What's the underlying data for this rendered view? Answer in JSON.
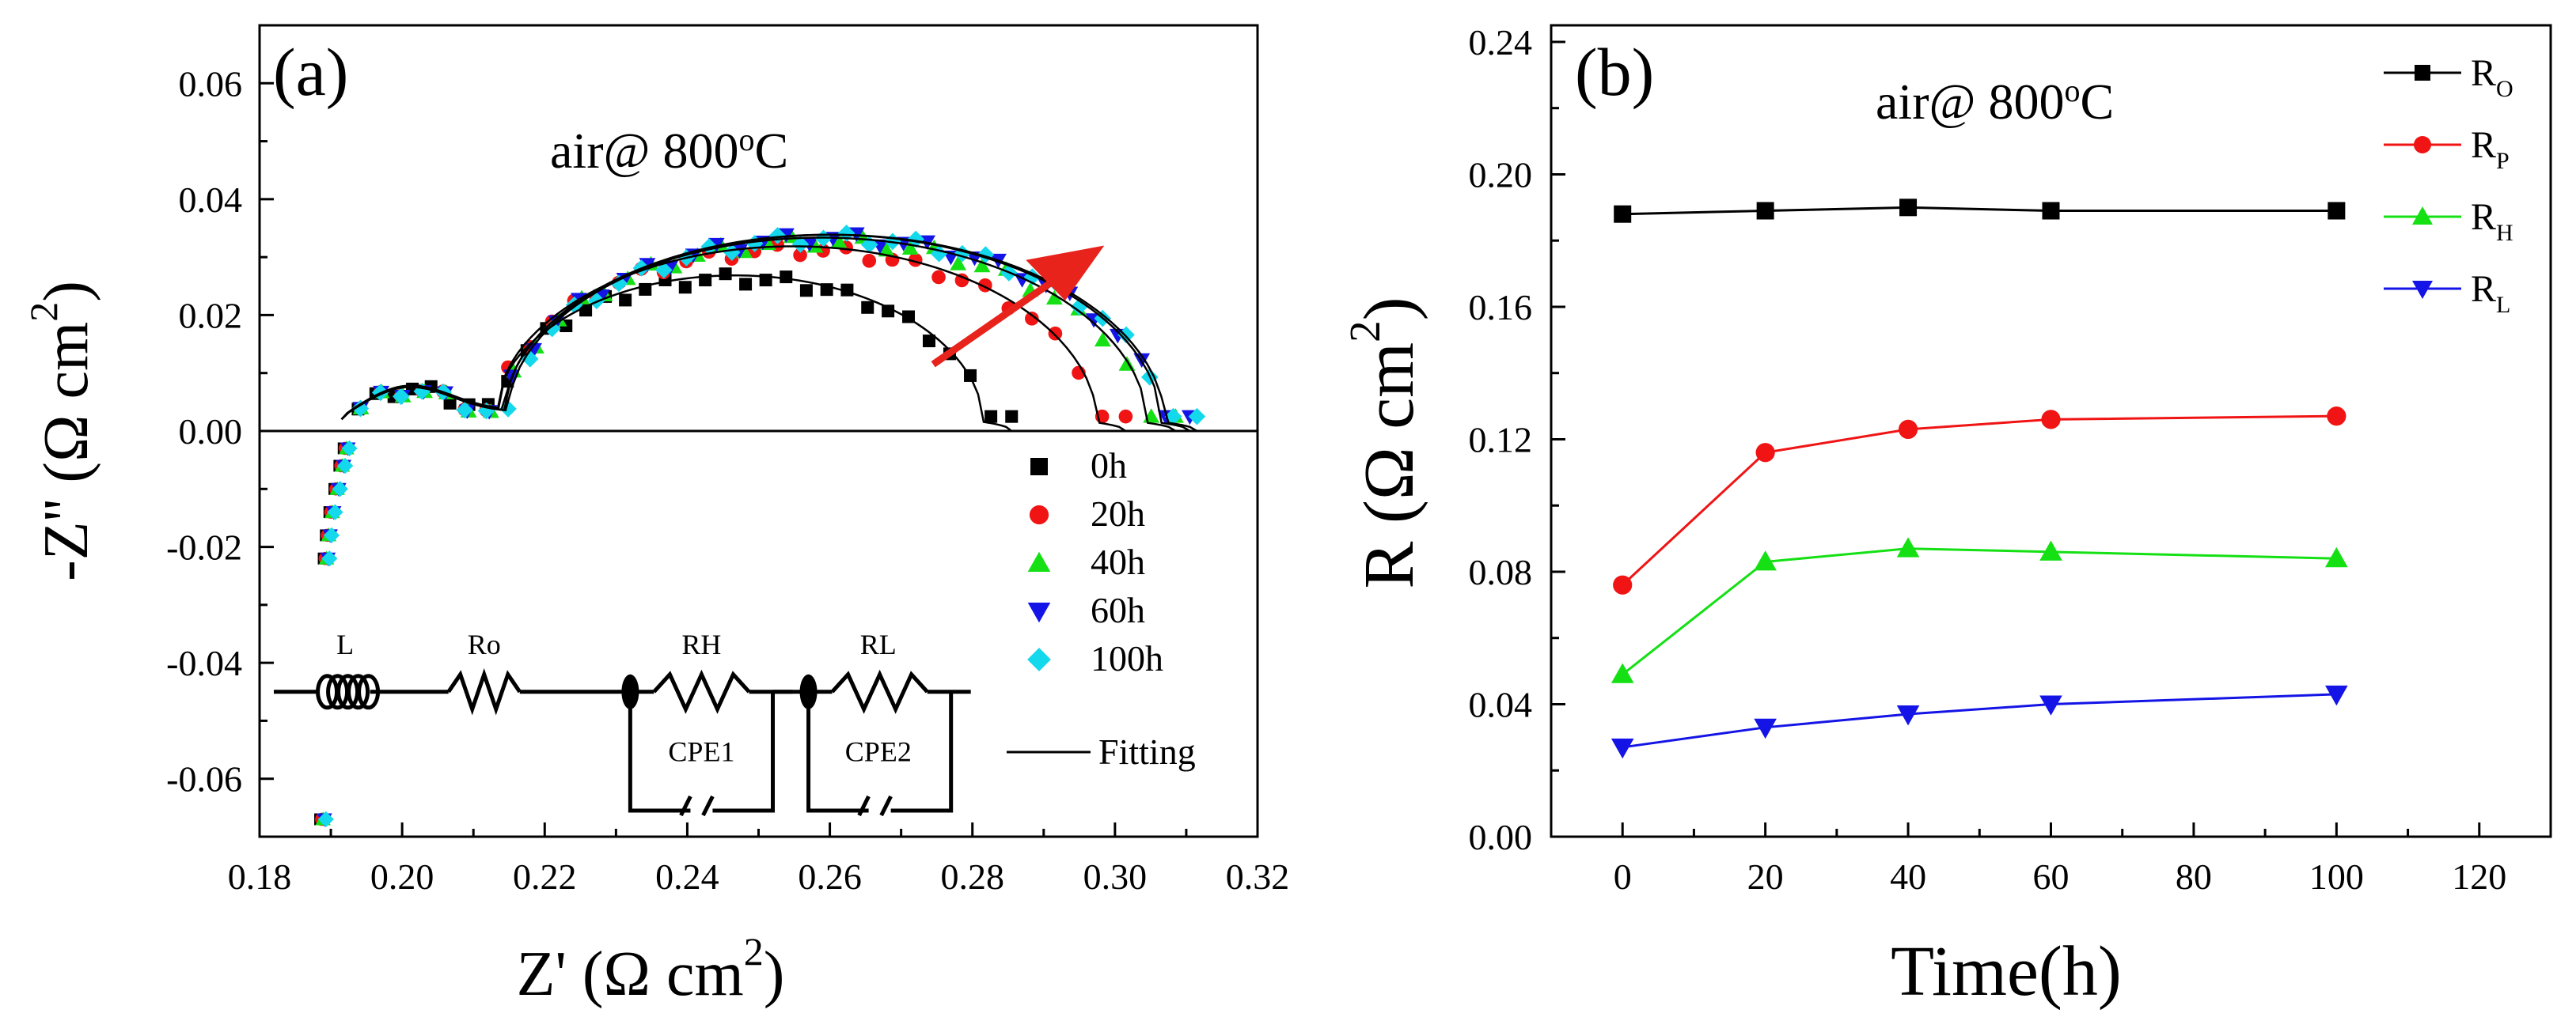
{
  "chart_data": [
    {
      "panel": "a",
      "type": "scatter",
      "panel_label": "(a)",
      "annotation": {
        "prefix": "air@ 800",
        "sup": "o",
        "suffix": "C"
      },
      "xlabel": {
        "main": "Z' (Ω cm",
        "sup": "2",
        "end": ")"
      },
      "ylabel": {
        "main": "-Z'' (Ω cm",
        "sup": "2",
        "end": ")"
      },
      "xlim": [
        0.18,
        0.32
      ],
      "ylim": [
        -0.07,
        0.07
      ],
      "xticks": [
        0.18,
        0.2,
        0.22,
        0.24,
        0.26,
        0.28,
        0.3,
        0.32
      ],
      "xtick_labels": [
        "0.18",
        "0.20",
        "0.22",
        "0.24",
        "0.26",
        "0.28",
        "0.30",
        "0.32"
      ],
      "yticks": [
        -0.06,
        -0.04,
        -0.02,
        0.0,
        0.02,
        0.04,
        0.06
      ],
      "ytick_labels": [
        "-0.06",
        "-0.04",
        "-0.02",
        "0.00",
        "0.02",
        "0.04",
        "0.06"
      ],
      "legend_position": "right",
      "fitting_label": "Fitting",
      "arrow_color": "#e8231c",
      "circuit_labels": [
        "L",
        "Ro",
        "RH",
        "RL",
        "CPE1",
        "CPE2"
      ],
      "series": [
        {
          "name": "0h",
          "color": "#000000",
          "marker": "square",
          "rs": 0.1915,
          "rt": 0.2855,
          "r1": 0.0215,
          "a1": 0.0055,
          "c1": 0.2005,
          "w1": 0.009,
          "a2": 0.023,
          "c2": 0.2475,
          "w2": 0.034
        },
        {
          "name": "20h",
          "color": "#f01414",
          "marker": "circle",
          "rs": 0.1915,
          "rt": 0.3015,
          "r1": 0.0215,
          "a1": 0.0055,
          "c1": 0.2005,
          "w1": 0.009,
          "a2": 0.028,
          "c2": 0.2555,
          "w2": 0.042
        },
        {
          "name": "40h",
          "color": "#14e014",
          "marker": "triangle-up",
          "rs": 0.1915,
          "rt": 0.3085,
          "r1": 0.0215,
          "a1": 0.0055,
          "c1": 0.2005,
          "w1": 0.009,
          "a2": 0.0295,
          "c2": 0.2595,
          "w2": 0.045
        },
        {
          "name": "60h",
          "color": "#1414e6",
          "marker": "triangle-down",
          "rs": 0.1915,
          "rt": 0.3105,
          "r1": 0.0215,
          "a1": 0.0055,
          "c1": 0.2005,
          "w1": 0.009,
          "a2": 0.03,
          "c2": 0.2605,
          "w2": 0.046
        },
        {
          "name": "100h",
          "color": "#14d8ec",
          "marker": "diamond",
          "rs": 0.1915,
          "rt": 0.3115,
          "r1": 0.0215,
          "a1": 0.0055,
          "c1": 0.2005,
          "w1": 0.009,
          "a2": 0.03,
          "c2": 0.261,
          "w2": 0.046
        }
      ],
      "inductive_tail": [
        [
          0.1918,
          -0.003
        ],
        [
          0.1912,
          -0.006
        ],
        [
          0.1905,
          -0.01
        ],
        [
          0.1898,
          -0.014
        ],
        [
          0.1893,
          -0.018
        ],
        [
          0.189,
          -0.022
        ],
        [
          0.1885,
          -0.067
        ]
      ]
    },
    {
      "panel": "b",
      "type": "line",
      "panel_label": "(b)",
      "annotation": {
        "prefix": "air@ 800",
        "sup": "o",
        "suffix": "C"
      },
      "xlabel": {
        "main": "Time(h)"
      },
      "ylabel": {
        "main": "R (Ω cm",
        "sup": "2",
        "end": ")"
      },
      "xlim": [
        -10,
        130
      ],
      "ylim": [
        0.0,
        0.245
      ],
      "xticks": [
        0,
        20,
        40,
        60,
        80,
        100,
        120
      ],
      "xtick_labels": [
        "0",
        "20",
        "40",
        "60",
        "80",
        "100",
        "120"
      ],
      "yticks": [
        0.0,
        0.04,
        0.08,
        0.12,
        0.16,
        0.2,
        0.24
      ],
      "ytick_labels": [
        "0.00",
        "0.04",
        "0.08",
        "0.12",
        "0.16",
        "0.20",
        "0.24"
      ],
      "x": [
        0,
        20,
        40,
        60,
        100
      ],
      "legend_position": "top-right",
      "series": [
        {
          "name": "R",
          "sub": "O",
          "color": "#000000",
          "marker": "square",
          "values": [
            0.188,
            0.189,
            0.19,
            0.189,
            0.189
          ]
        },
        {
          "name": "R",
          "sub": "P",
          "color": "#f01414",
          "marker": "circle",
          "values": [
            0.076,
            0.116,
            0.123,
            0.126,
            0.127
          ]
        },
        {
          "name": "R",
          "sub": "H",
          "color": "#14e014",
          "marker": "triangle-up",
          "values": [
            0.049,
            0.083,
            0.087,
            0.086,
            0.084
          ]
        },
        {
          "name": "R",
          "sub": "L",
          "color": "#1414e6",
          "marker": "triangle-down",
          "values": [
            0.027,
            0.033,
            0.037,
            0.04,
            0.043
          ]
        }
      ]
    }
  ]
}
